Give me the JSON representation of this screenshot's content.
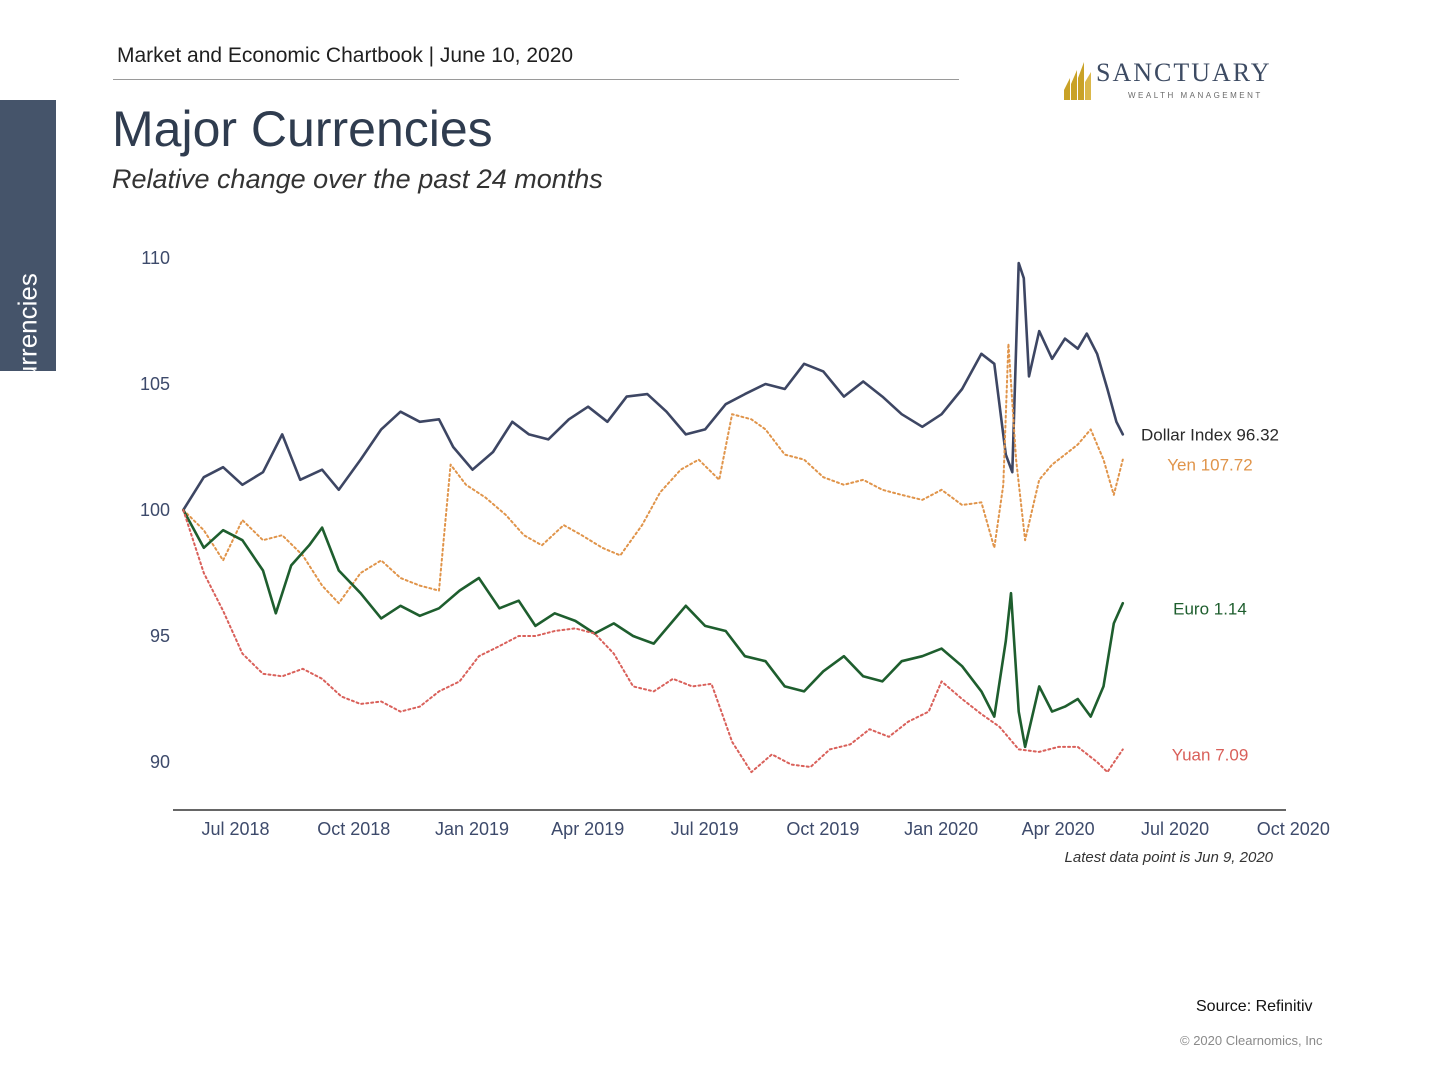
{
  "header": {
    "text": "Market and Economic Chartbook | June 10, 2020"
  },
  "side_tab": {
    "label": "Currencies"
  },
  "logo": {
    "name": "SANCTUARY",
    "tagline": "WEALTH MANAGEMENT",
    "color": "#3d4b63",
    "mark_color": "#c9a227"
  },
  "title": "Major Currencies",
  "subtitle": "Relative change over the past 24 months",
  "footer": {
    "source": "Source: Refinitiv",
    "copyright": "© 2020 Clearnomics, Inc"
  },
  "chart_data": {
    "type": "line",
    "title": "Major Currencies",
    "subtitle": "Relative change over the past 24 months",
    "xlabel": "",
    "ylabel": "",
    "ylim": [
      88,
      111
    ],
    "xlim": [
      "2018-06-01",
      "2020-10-01"
    ],
    "yticks": [
      90,
      95,
      100,
      105,
      110
    ],
    "xticks": [
      {
        "date": "2018-07-01",
        "label": "Jul 2018"
      },
      {
        "date": "2018-10-01",
        "label": "Oct 2018"
      },
      {
        "date": "2019-01-01",
        "label": "Jan 2019"
      },
      {
        "date": "2019-04-01",
        "label": "Apr 2019"
      },
      {
        "date": "2019-07-01",
        "label": "Jul 2019"
      },
      {
        "date": "2019-10-01",
        "label": "Oct 2019"
      },
      {
        "date": "2020-01-01",
        "label": "Jan 2020"
      },
      {
        "date": "2020-04-01",
        "label": "Apr 2020"
      },
      {
        "date": "2020-07-01",
        "label": "Jul 2020"
      },
      {
        "date": "2020-10-01",
        "label": "Oct 2020"
      }
    ],
    "grid": false,
    "note": "Latest data point is Jun 9, 2020",
    "series": [
      {
        "name": "Dollar Index 96.32",
        "color": "#3d4663",
        "dash": "solid",
        "points": [
          [
            "2018-06-09",
            100
          ],
          [
            "2018-06-25",
            101.3
          ],
          [
            "2018-07-10",
            101.7
          ],
          [
            "2018-07-25",
            101.0
          ],
          [
            "2018-08-10",
            101.5
          ],
          [
            "2018-08-25",
            103.0
          ],
          [
            "2018-09-08",
            101.2
          ],
          [
            "2018-09-25",
            101.6
          ],
          [
            "2018-10-08",
            100.8
          ],
          [
            "2018-10-25",
            102.0
          ],
          [
            "2018-11-10",
            103.2
          ],
          [
            "2018-11-25",
            103.9
          ],
          [
            "2018-12-10",
            103.5
          ],
          [
            "2018-12-25",
            103.6
          ],
          [
            "2019-01-05",
            102.5
          ],
          [
            "2019-01-20",
            101.6
          ],
          [
            "2019-02-05",
            102.3
          ],
          [
            "2019-02-20",
            103.5
          ],
          [
            "2019-03-05",
            103.0
          ],
          [
            "2019-03-20",
            102.8
          ],
          [
            "2019-04-05",
            103.6
          ],
          [
            "2019-04-20",
            104.1
          ],
          [
            "2019-05-05",
            103.5
          ],
          [
            "2019-05-20",
            104.5
          ],
          [
            "2019-06-05",
            104.6
          ],
          [
            "2019-06-20",
            103.9
          ],
          [
            "2019-07-05",
            103.0
          ],
          [
            "2019-07-20",
            103.2
          ],
          [
            "2019-08-05",
            104.2
          ],
          [
            "2019-08-20",
            104.6
          ],
          [
            "2019-09-05",
            105.0
          ],
          [
            "2019-09-20",
            104.8
          ],
          [
            "2019-10-05",
            105.8
          ],
          [
            "2019-10-20",
            105.5
          ],
          [
            "2019-11-05",
            104.5
          ],
          [
            "2019-11-20",
            105.1
          ],
          [
            "2019-12-05",
            104.5
          ],
          [
            "2019-12-20",
            103.8
          ],
          [
            "2020-01-05",
            103.3
          ],
          [
            "2020-01-20",
            103.8
          ],
          [
            "2020-02-05",
            104.8
          ],
          [
            "2020-02-20",
            106.2
          ],
          [
            "2020-03-01",
            105.8
          ],
          [
            "2020-03-10",
            102.2
          ],
          [
            "2020-03-15",
            101.5
          ],
          [
            "2020-03-20",
            109.8
          ],
          [
            "2020-03-24",
            109.2
          ],
          [
            "2020-03-28",
            105.3
          ],
          [
            "2020-04-05",
            107.1
          ],
          [
            "2020-04-15",
            106.0
          ],
          [
            "2020-04-25",
            106.8
          ],
          [
            "2020-05-05",
            106.4
          ],
          [
            "2020-05-12",
            107.0
          ],
          [
            "2020-05-20",
            106.2
          ],
          [
            "2020-05-28",
            104.8
          ],
          [
            "2020-06-04",
            103.5
          ],
          [
            "2020-06-09",
            103.0
          ]
        ],
        "label_y": 103.0,
        "label_color": "#2a2a2a"
      },
      {
        "name": "Yen 107.72",
        "color": "#e0944a",
        "dash": "dotted",
        "points": [
          [
            "2018-06-09",
            100
          ],
          [
            "2018-06-25",
            99.2
          ],
          [
            "2018-07-10",
            98.0
          ],
          [
            "2018-07-25",
            99.6
          ],
          [
            "2018-08-10",
            98.8
          ],
          [
            "2018-08-25",
            99.0
          ],
          [
            "2018-09-10",
            98.2
          ],
          [
            "2018-09-25",
            97.0
          ],
          [
            "2018-10-08",
            96.3
          ],
          [
            "2018-10-25",
            97.5
          ],
          [
            "2018-11-10",
            98.0
          ],
          [
            "2018-11-25",
            97.3
          ],
          [
            "2018-12-10",
            97.0
          ],
          [
            "2018-12-25",
            96.8
          ],
          [
            "2019-01-03",
            101.8
          ],
          [
            "2019-01-15",
            101.0
          ],
          [
            "2019-01-30",
            100.5
          ],
          [
            "2019-02-15",
            99.8
          ],
          [
            "2019-03-01",
            99.0
          ],
          [
            "2019-03-15",
            98.6
          ],
          [
            "2019-04-01",
            99.4
          ],
          [
            "2019-04-15",
            99.0
          ],
          [
            "2019-05-01",
            98.5
          ],
          [
            "2019-05-15",
            98.2
          ],
          [
            "2019-06-01",
            99.4
          ],
          [
            "2019-06-15",
            100.7
          ],
          [
            "2019-07-01",
            101.6
          ],
          [
            "2019-07-15",
            102.0
          ],
          [
            "2019-07-31",
            101.2
          ],
          [
            "2019-08-10",
            103.8
          ],
          [
            "2019-08-25",
            103.6
          ],
          [
            "2019-09-05",
            103.2
          ],
          [
            "2019-09-20",
            102.2
          ],
          [
            "2019-10-05",
            102.0
          ],
          [
            "2019-10-20",
            101.3
          ],
          [
            "2019-11-05",
            101.0
          ],
          [
            "2019-11-20",
            101.2
          ],
          [
            "2019-12-05",
            100.8
          ],
          [
            "2019-12-20",
            100.6
          ],
          [
            "2020-01-05",
            100.4
          ],
          [
            "2020-01-20",
            100.8
          ],
          [
            "2020-02-05",
            100.2
          ],
          [
            "2020-02-20",
            100.3
          ],
          [
            "2020-03-01",
            98.5
          ],
          [
            "2020-03-08",
            101.0
          ],
          [
            "2020-03-12",
            106.6
          ],
          [
            "2020-03-18",
            102.0
          ],
          [
            "2020-03-25",
            98.8
          ],
          [
            "2020-04-05",
            101.2
          ],
          [
            "2020-04-15",
            101.8
          ],
          [
            "2020-04-25",
            102.2
          ],
          [
            "2020-05-05",
            102.6
          ],
          [
            "2020-05-15",
            103.2
          ],
          [
            "2020-05-25",
            102.0
          ],
          [
            "2020-06-02",
            100.6
          ],
          [
            "2020-06-09",
            102.0
          ]
        ],
        "label_y": 101.8,
        "label_color": "#e0944a"
      },
      {
        "name": "Euro 1.14",
        "color": "#1e5e2e",
        "dash": "solid",
        "points": [
          [
            "2018-06-09",
            100
          ],
          [
            "2018-06-25",
            98.5
          ],
          [
            "2018-07-10",
            99.2
          ],
          [
            "2018-07-25",
            98.8
          ],
          [
            "2018-08-10",
            97.6
          ],
          [
            "2018-08-20",
            95.9
          ],
          [
            "2018-09-01",
            97.8
          ],
          [
            "2018-09-15",
            98.6
          ],
          [
            "2018-09-25",
            99.3
          ],
          [
            "2018-10-08",
            97.6
          ],
          [
            "2018-10-25",
            96.7
          ],
          [
            "2018-11-10",
            95.7
          ],
          [
            "2018-11-25",
            96.2
          ],
          [
            "2018-12-10",
            95.8
          ],
          [
            "2018-12-25",
            96.1
          ],
          [
            "2019-01-10",
            96.8
          ],
          [
            "2019-01-25",
            97.3
          ],
          [
            "2019-02-10",
            96.1
          ],
          [
            "2019-02-25",
            96.4
          ],
          [
            "2019-03-10",
            95.4
          ],
          [
            "2019-03-25",
            95.9
          ],
          [
            "2019-04-10",
            95.6
          ],
          [
            "2019-04-25",
            95.1
          ],
          [
            "2019-05-10",
            95.5
          ],
          [
            "2019-05-25",
            95.0
          ],
          [
            "2019-06-10",
            94.7
          ],
          [
            "2019-06-25",
            95.6
          ],
          [
            "2019-07-05",
            96.2
          ],
          [
            "2019-07-20",
            95.4
          ],
          [
            "2019-08-05",
            95.2
          ],
          [
            "2019-08-20",
            94.2
          ],
          [
            "2019-09-05",
            94.0
          ],
          [
            "2019-09-20",
            93.0
          ],
          [
            "2019-10-05",
            92.8
          ],
          [
            "2019-10-20",
            93.6
          ],
          [
            "2019-11-05",
            94.2
          ],
          [
            "2019-11-20",
            93.4
          ],
          [
            "2019-12-05",
            93.2
          ],
          [
            "2019-12-20",
            94.0
          ],
          [
            "2020-01-05",
            94.2
          ],
          [
            "2020-01-20",
            94.5
          ],
          [
            "2020-02-05",
            93.8
          ],
          [
            "2020-02-20",
            92.8
          ],
          [
            "2020-03-01",
            91.8
          ],
          [
            "2020-03-10",
            94.8
          ],
          [
            "2020-03-14",
            96.7
          ],
          [
            "2020-03-20",
            92.0
          ],
          [
            "2020-03-25",
            90.6
          ],
          [
            "2020-04-05",
            93.0
          ],
          [
            "2020-04-15",
            92.0
          ],
          [
            "2020-04-25",
            92.2
          ],
          [
            "2020-05-05",
            92.5
          ],
          [
            "2020-05-15",
            91.8
          ],
          [
            "2020-05-25",
            93.0
          ],
          [
            "2020-06-02",
            95.5
          ],
          [
            "2020-06-09",
            96.3
          ]
        ],
        "label_y": 96.1,
        "label_color": "#1e5e2e"
      },
      {
        "name": "Yuan 7.09",
        "color": "#d9605a",
        "dash": "dotted",
        "points": [
          [
            "2018-06-09",
            100
          ],
          [
            "2018-06-25",
            97.5
          ],
          [
            "2018-07-10",
            96.0
          ],
          [
            "2018-07-25",
            94.3
          ],
          [
            "2018-08-10",
            93.5
          ],
          [
            "2018-08-25",
            93.4
          ],
          [
            "2018-09-10",
            93.7
          ],
          [
            "2018-09-25",
            93.3
          ],
          [
            "2018-10-10",
            92.6
          ],
          [
            "2018-10-25",
            92.3
          ],
          [
            "2018-11-10",
            92.4
          ],
          [
            "2018-11-25",
            92.0
          ],
          [
            "2018-12-10",
            92.2
          ],
          [
            "2018-12-25",
            92.8
          ],
          [
            "2019-01-10",
            93.2
          ],
          [
            "2019-01-25",
            94.2
          ],
          [
            "2019-02-10",
            94.6
          ],
          [
            "2019-02-25",
            95.0
          ],
          [
            "2019-03-10",
            95.0
          ],
          [
            "2019-03-25",
            95.2
          ],
          [
            "2019-04-10",
            95.3
          ],
          [
            "2019-04-25",
            95.1
          ],
          [
            "2019-05-10",
            94.3
          ],
          [
            "2019-05-25",
            93.0
          ],
          [
            "2019-06-10",
            92.8
          ],
          [
            "2019-06-25",
            93.3
          ],
          [
            "2019-07-10",
            93.0
          ],
          [
            "2019-07-25",
            93.1
          ],
          [
            "2019-08-10",
            90.8
          ],
          [
            "2019-08-25",
            89.6
          ],
          [
            "2019-09-10",
            90.3
          ],
          [
            "2019-09-25",
            89.9
          ],
          [
            "2019-10-10",
            89.8
          ],
          [
            "2019-10-25",
            90.5
          ],
          [
            "2019-11-10",
            90.7
          ],
          [
            "2019-11-25",
            91.3
          ],
          [
            "2019-12-10",
            91.0
          ],
          [
            "2019-12-25",
            91.6
          ],
          [
            "2020-01-10",
            92.0
          ],
          [
            "2020-01-20",
            93.2
          ],
          [
            "2020-02-05",
            92.5
          ],
          [
            "2020-02-20",
            91.9
          ],
          [
            "2020-03-05",
            91.4
          ],
          [
            "2020-03-20",
            90.5
          ],
          [
            "2020-04-05",
            90.4
          ],
          [
            "2020-04-20",
            90.6
          ],
          [
            "2020-05-05",
            90.6
          ],
          [
            "2020-05-20",
            90.0
          ],
          [
            "2020-05-28",
            89.6
          ],
          [
            "2020-06-09",
            90.5
          ]
        ],
        "label_y": 90.3,
        "label_color": "#d9605a"
      }
    ]
  }
}
